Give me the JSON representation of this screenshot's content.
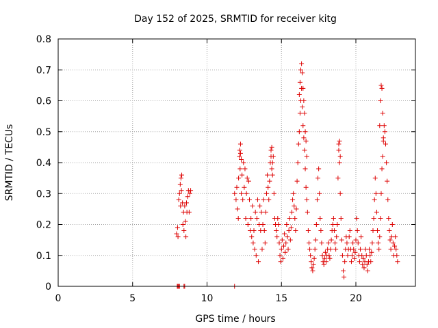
{
  "chart_data": {
    "type": "scatter",
    "title": "Day 152 of 2025, SRMTID for receiver kitg",
    "xlabel": "GPS time / hours",
    "ylabel": "SRMTID / TECUs",
    "xlim": [
      0,
      24
    ],
    "ylim": [
      0,
      0.8
    ],
    "xticks": [
      0,
      5,
      10,
      15,
      20
    ],
    "yticks": [
      0,
      0.1,
      0.2,
      0.3,
      0.4,
      0.5,
      0.6,
      0.7,
      0.8
    ],
    "xtick_labels": [
      "0",
      "5",
      "10",
      "15",
      "20"
    ],
    "ytick_labels": [
      "0",
      "0.1",
      "0.2",
      "0.3",
      "0.4",
      "0.5",
      "0.6",
      "0.7",
      "0.8"
    ],
    "grid": true,
    "marker": "plus",
    "series_color": "#dd0000",
    "series": [
      {
        "name": "SRMTID",
        "x": [
          7.95,
          8.02,
          8.05,
          8.1,
          8.15,
          8.2,
          8.22,
          8.25,
          8.28,
          8.3,
          8.35,
          8.38,
          8.42,
          8.45,
          8.5,
          8.55,
          8.58,
          8.62,
          8.65,
          8.7,
          8.75,
          8.8,
          8.85,
          8.9,
          11.85,
          11.95,
          12.0,
          12.05,
          12.1,
          12.12,
          12.18,
          12.22,
          12.25,
          12.3,
          12.35,
          12.4,
          12.45,
          12.5,
          12.55,
          12.6,
          12.65,
          12.7,
          12.75,
          12.8,
          12.85,
          12.9,
          12.95,
          13.0,
          13.05,
          13.1,
          13.15,
          13.2,
          13.25,
          13.3,
          13.35,
          13.4,
          13.45,
          13.5,
          13.55,
          13.6,
          13.65,
          13.7,
          13.75,
          13.8,
          13.85,
          13.9,
          13.95,
          14.0,
          14.05,
          14.1,
          14.15,
          14.2,
          14.25,
          14.3,
          14.35,
          14.4,
          14.45,
          14.5,
          14.55,
          14.6,
          14.65,
          14.7,
          14.75,
          14.8,
          14.85,
          14.9,
          14.95,
          15.0,
          15.05,
          15.1,
          15.15,
          15.2,
          15.25,
          15.3,
          15.35,
          15.4,
          15.45,
          15.5,
          15.55,
          15.6,
          15.65,
          15.7,
          15.75,
          15.8,
          15.85,
          15.9,
          15.95,
          16.0,
          16.05,
          16.1,
          16.15,
          16.2,
          16.25,
          16.3,
          16.35,
          16.4,
          16.45,
          16.5,
          16.55,
          16.6,
          16.65,
          16.7,
          16.75,
          16.8,
          16.85,
          16.9,
          16.95,
          17.0,
          17.05,
          17.1,
          17.15,
          17.2,
          17.25,
          17.3,
          17.35,
          17.4,
          17.45,
          17.5,
          17.55,
          17.6,
          17.65,
          17.7,
          17.75,
          17.8,
          17.85,
          17.9,
          17.95,
          18.0,
          18.05,
          18.1,
          18.15,
          18.2,
          18.25,
          18.3,
          18.35,
          18.4,
          18.45,
          18.5,
          18.55,
          18.6,
          18.65,
          18.7,
          18.75,
          18.8,
          18.85,
          18.9,
          18.95,
          19.0,
          19.05,
          19.1,
          19.15,
          19.2,
          19.25,
          19.3,
          19.35,
          19.4,
          19.45,
          19.5,
          19.55,
          19.6,
          19.65,
          19.7,
          19.75,
          19.8,
          19.85,
          19.9,
          19.95,
          20.0,
          20.05,
          20.1,
          20.15,
          20.2,
          20.25,
          20.3,
          20.35,
          20.4,
          20.45,
          20.5,
          20.55,
          20.6,
          20.65,
          20.7,
          20.75,
          20.8,
          20.85,
          20.9,
          20.95,
          21.0,
          21.05,
          21.1,
          21.15,
          21.2,
          21.25,
          21.3,
          21.35,
          21.4,
          21.45,
          21.5,
          21.55,
          21.6,
          21.65,
          21.7,
          21.75,
          21.8,
          21.85,
          21.9,
          21.95,
          22.0,
          22.05,
          22.1,
          22.15,
          22.2,
          22.25,
          22.3,
          22.35,
          22.4,
          22.45,
          22.5,
          22.55,
          22.6,
          22.65,
          22.7,
          22.75,
          22.8,
          16.2,
          16.25,
          16.3,
          16.35,
          16.4,
          16.45,
          16.5,
          16.55,
          16.6,
          16.65,
          16.7,
          21.6,
          21.65,
          21.7,
          21.75,
          21.8,
          21.85,
          18.85,
          18.9,
          18.95,
          12.2,
          12.25,
          12.3,
          14.3,
          14.35,
          14.4,
          8.0,
          8.05,
          8.1,
          8.15,
          8.45,
          8.5,
          11.85
        ],
        "y": [
          0.17,
          0.19,
          0.16,
          0.28,
          0.3,
          0.33,
          0.26,
          0.35,
          0.31,
          0.36,
          0.27,
          0.2,
          0.24,
          0.18,
          0.26,
          0.21,
          0.16,
          0.27,
          0.24,
          0.29,
          0.31,
          0.24,
          0.3,
          0.31,
          0.3,
          0.28,
          0.32,
          0.25,
          0.22,
          0.35,
          0.42,
          0.38,
          0.46,
          0.3,
          0.36,
          0.28,
          0.4,
          0.32,
          0.38,
          0.22,
          0.3,
          0.35,
          0.2,
          0.34,
          0.28,
          0.18,
          0.22,
          0.16,
          0.26,
          0.14,
          0.18,
          0.12,
          0.24,
          0.1,
          0.22,
          0.28,
          0.08,
          0.2,
          0.26,
          0.18,
          0.24,
          0.12,
          0.2,
          0.28,
          0.18,
          0.14,
          0.24,
          0.3,
          0.36,
          0.32,
          0.28,
          0.34,
          0.4,
          0.44,
          0.38,
          0.36,
          0.42,
          0.3,
          0.22,
          0.2,
          0.18,
          0.16,
          0.22,
          0.2,
          0.14,
          0.1,
          0.08,
          0.12,
          0.15,
          0.09,
          0.13,
          0.17,
          0.11,
          0.14,
          0.2,
          0.16,
          0.12,
          0.18,
          0.22,
          0.15,
          0.19,
          0.24,
          0.28,
          0.3,
          0.26,
          0.22,
          0.18,
          0.25,
          0.34,
          0.4,
          0.46,
          0.5,
          0.56,
          0.6,
          0.64,
          0.58,
          0.52,
          0.48,
          0.44,
          0.38,
          0.32,
          0.28,
          0.24,
          0.18,
          0.14,
          0.12,
          0.1,
          0.08,
          0.06,
          0.05,
          0.07,
          0.09,
          0.12,
          0.15,
          0.2,
          0.28,
          0.35,
          0.38,
          0.3,
          0.22,
          0.18,
          0.14,
          0.1,
          0.08,
          0.07,
          0.09,
          0.11,
          0.08,
          0.1,
          0.12,
          0.14,
          0.1,
          0.09,
          0.12,
          0.15,
          0.18,
          0.2,
          0.22,
          0.18,
          0.14,
          0.12,
          0.16,
          0.2,
          0.35,
          0.46,
          0.4,
          0.3,
          0.22,
          0.15,
          0.1,
          0.05,
          0.03,
          0.08,
          0.12,
          0.16,
          0.14,
          0.1,
          0.12,
          0.16,
          0.18,
          0.12,
          0.08,
          0.1,
          0.14,
          0.12,
          0.09,
          0.11,
          0.15,
          0.22,
          0.18,
          0.14,
          0.1,
          0.08,
          0.12,
          0.16,
          0.1,
          0.07,
          0.09,
          0.06,
          0.08,
          0.12,
          0.1,
          0.07,
          0.05,
          0.08,
          0.12,
          0.1,
          0.08,
          0.11,
          0.14,
          0.18,
          0.22,
          0.28,
          0.35,
          0.3,
          0.24,
          0.18,
          0.14,
          0.12,
          0.16,
          0.22,
          0.3,
          0.38,
          0.42,
          0.48,
          0.52,
          0.5,
          0.46,
          0.4,
          0.34,
          0.28,
          0.22,
          0.18,
          0.15,
          0.12,
          0.16,
          0.2,
          0.14,
          0.1,
          0.13,
          0.16,
          0.12,
          0.1,
          0.08,
          0.62,
          0.66,
          0.7,
          0.72,
          0.69,
          0.64,
          0.6,
          0.56,
          0.5,
          0.47,
          0.42,
          0.52,
          0.6,
          0.65,
          0.64,
          0.56,
          0.47,
          0.44,
          0.47,
          0.42,
          0.44,
          0.43,
          0.41,
          0.42,
          0.45,
          0.4,
          0.0,
          0.0,
          0.0,
          0.0,
          0.0,
          0.0,
          0.0
        ]
      }
    ]
  }
}
